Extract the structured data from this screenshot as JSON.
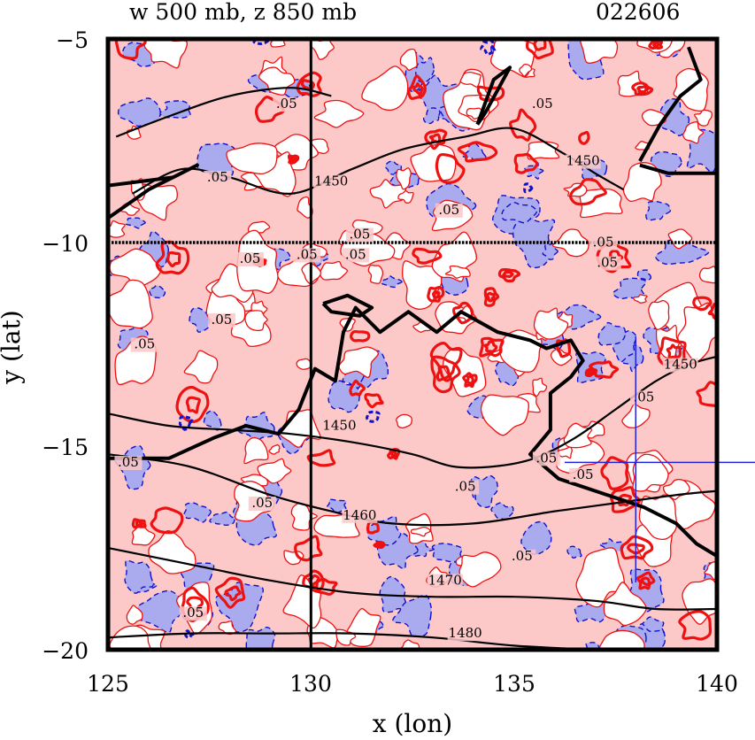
{
  "chart_data": {
    "type": "contour-map",
    "title": "w 500 mb, z 850 mb",
    "date_label": "022606",
    "xlabel": "x (lon)",
    "ylabel": "y (lat)",
    "xlim": [
      125,
      140
    ],
    "ylim": [
      -20,
      -5
    ],
    "x_ticks": [
      125,
      130,
      135,
      140
    ],
    "y_ticks": [
      -5,
      -10,
      -15,
      -20
    ],
    "x_tick_labels": [
      "125",
      "130",
      "135",
      "140"
    ],
    "y_tick_labels": [
      "−5",
      "−10",
      "−15",
      "−20"
    ],
    "reference_lines": {
      "vertical_lon": 130,
      "horizontal_lat": -10
    },
    "colors": {
      "positive_fill": "#fcc8c8",
      "negative_fill": "#aaaaee",
      "positive_line": "#ee1111",
      "negative_line": "#1111cc",
      "height_line": "#000000",
      "marker": "#2222dd"
    },
    "marker": {
      "lon": 138,
      "lat": -15.4
    },
    "height_contours": [
      {
        "label": "1450",
        "points": [
          [
            125,
            -14.2
          ],
          [
            126.5,
            -14.5
          ],
          [
            128,
            -14.6
          ],
          [
            129.5,
            -14.7
          ],
          [
            131,
            -14.9
          ],
          [
            132.5,
            -15.2
          ],
          [
            133.5,
            -15.5
          ],
          [
            134.5,
            -15.5
          ],
          [
            135.5,
            -15.3
          ],
          [
            136.5,
            -14.8
          ],
          [
            137.5,
            -14.1
          ],
          [
            138.5,
            -13.4
          ],
          [
            139.3,
            -13
          ],
          [
            140,
            -12.8
          ]
        ]
      },
      {
        "label": "1460",
        "points": [
          [
            125,
            -15.2
          ],
          [
            127,
            -15.5
          ],
          [
            129,
            -16.2
          ],
          [
            130.5,
            -16.6
          ],
          [
            132,
            -16.9
          ],
          [
            134,
            -16.9
          ],
          [
            136,
            -16.6
          ],
          [
            137.5,
            -16.4
          ],
          [
            139,
            -16.2
          ],
          [
            140,
            -16.1
          ]
        ]
      },
      {
        "label": "1470",
        "points": [
          [
            125,
            -17.5
          ],
          [
            127,
            -17.9
          ],
          [
            129,
            -18.3
          ],
          [
            131,
            -18.6
          ],
          [
            133,
            -18.7
          ],
          [
            135,
            -18.7
          ],
          [
            137,
            -18.8
          ],
          [
            138.5,
            -19
          ],
          [
            140,
            -19
          ]
        ]
      },
      {
        "label": "1480",
        "points": [
          [
            125,
            -19.7
          ],
          [
            127,
            -19.6
          ],
          [
            129,
            -19.6
          ],
          [
            131,
            -19.6
          ],
          [
            133,
            -19.7
          ],
          [
            135,
            -19.9
          ],
          [
            137,
            -20
          ]
        ]
      },
      {
        "label": "1450",
        "points": [
          [
            125.6,
            -8.8
          ],
          [
            126.8,
            -8.2
          ],
          [
            128,
            -8.4
          ],
          [
            129.5,
            -8.8
          ],
          [
            131,
            -8.2
          ],
          [
            132.3,
            -7.7
          ],
          [
            133.8,
            -7.4
          ],
          [
            135,
            -7.2
          ],
          [
            136.2,
            -7.8
          ],
          [
            137,
            -8.3
          ],
          [
            137.7,
            -8.7
          ]
        ]
      },
      {
        "label": "",
        "points": [
          [
            125.2,
            -7.4
          ],
          [
            126.5,
            -6.9
          ],
          [
            128,
            -6.4
          ],
          [
            129.5,
            -6.2
          ],
          [
            130.5,
            -6.4
          ]
        ]
      }
    ],
    "coastlines": [
      [
        [
          125,
          -15.3
        ],
        [
          125.6,
          -15.3
        ],
        [
          126.5,
          -15.3
        ],
        [
          127.6,
          -14.8
        ],
        [
          128.4,
          -14.5
        ],
        [
          129.2,
          -14.7
        ],
        [
          129.7,
          -14.1
        ],
        [
          130.1,
          -13.1
        ],
        [
          130.6,
          -13.4
        ],
        [
          130.8,
          -12.2
        ],
        [
          131.1,
          -11.6
        ],
        [
          131.7,
          -12.2
        ],
        [
          132.4,
          -11.7
        ],
        [
          133.1,
          -12.2
        ],
        [
          133.7,
          -11.7
        ],
        [
          134.6,
          -12.2
        ],
        [
          135.4,
          -12.4
        ],
        [
          135.8,
          -12.6
        ],
        [
          136.4,
          -12.4
        ],
        [
          136.7,
          -12.9
        ],
        [
          136.4,
          -13.3
        ],
        [
          135.9,
          -13.7
        ],
        [
          135.9,
          -14.6
        ],
        [
          135.4,
          -15.2
        ],
        [
          136.1,
          -15.8
        ],
        [
          137.0,
          -16.1
        ],
        [
          138.2,
          -16.5
        ],
        [
          139.0,
          -16.9
        ],
        [
          139.5,
          -17.4
        ],
        [
          140,
          -17.7
        ]
      ],
      [
        [
          130.3,
          -11.5
        ],
        [
          130.9,
          -11.3
        ],
        [
          131.5,
          -11.6
        ],
        [
          131.2,
          -11.8
        ],
        [
          130.5,
          -11.7
        ],
        [
          130.3,
          -11.5
        ]
      ],
      [
        [
          134.1,
          -7.1
        ],
        [
          134.5,
          -6
        ],
        [
          134.9,
          -5.7
        ],
        [
          134.3,
          -6.8
        ],
        [
          134.1,
          -7.1
        ]
      ],
      [
        [
          125,
          -8.6
        ],
        [
          126.6,
          -8.4
        ],
        [
          127.2,
          -8.1
        ],
        [
          126,
          -8.7
        ],
        [
          125,
          -9.4
        ]
      ],
      [
        [
          138.1,
          -8
        ],
        [
          138.6,
          -7.1
        ],
        [
          139.1,
          -6.4
        ],
        [
          139.6,
          -6.0
        ],
        [
          139.3,
          -5.2
        ]
      ],
      [
        [
          138.1,
          -8.1
        ],
        [
          138.8,
          -8.3
        ],
        [
          139.5,
          -8.3
        ],
        [
          140,
          -8.3
        ]
      ]
    ],
    "value_labels": [
      {
        "text": ".05",
        "lon": 127.7,
        "lat": -8.5
      },
      {
        "text": "1450",
        "lon": 130.5,
        "lat": -8.6
      },
      {
        "text": ".05",
        "lon": 129.4,
        "lat": -6.7
      },
      {
        "text": ".05",
        "lon": 135.7,
        "lat": -6.7
      },
      {
        "text": "1450",
        "lon": 136.7,
        "lat": -8.1
      },
      {
        "text": ".05",
        "lon": 133.4,
        "lat": -9.3
      },
      {
        "text": ".05",
        "lon": 131.2,
        "lat": -9.9
      },
      {
        "text": ".05",
        "lon": 129.9,
        "lat": -10.4
      },
      {
        "text": ".05",
        "lon": 131.1,
        "lat": -10.4
      },
      {
        "text": ".05",
        "lon": 128.5,
        "lat": -10.5
      },
      {
        "text": ".05",
        "lon": 127.8,
        "lat": -12
      },
      {
        "text": ".05",
        "lon": 125.9,
        "lat": -12.6
      },
      {
        "text": ".05",
        "lon": 125.5,
        "lat": -15.5
      },
      {
        "text": "1450",
        "lon": 130.7,
        "lat": -14.6
      },
      {
        "text": ".05",
        "lon": 128.8,
        "lat": -16.5
      },
      {
        "text": "1460",
        "lon": 131.2,
        "lat": -16.8
      },
      {
        "text": ".05",
        "lon": 133.8,
        "lat": -16.1
      },
      {
        "text": "1470",
        "lon": 133.3,
        "lat": -18.4
      },
      {
        "text": ".05",
        "lon": 127.1,
        "lat": -19.2
      },
      {
        "text": "1480",
        "lon": 133.8,
        "lat": -19.7
      },
      {
        "text": ".05",
        "lon": 135.2,
        "lat": -17.8
      },
      {
        "text": ".05",
        "lon": 137.2,
        "lat": -10.1
      },
      {
        "text": ".05",
        "lon": 137.3,
        "lat": -10.6
      },
      {
        "text": ".05",
        "lon": 138.2,
        "lat": -13.9
      },
      {
        "text": "1450",
        "lon": 139.1,
        "lat": -13.1
      },
      {
        "text": ".05",
        "lon": 135.8,
        "lat": -15.4
      },
      {
        "text": ".05",
        "lon": 136.7,
        "lat": -15.8
      }
    ],
    "fields": [
      {
        "description": "positive w region (light red)",
        "sign": "pos",
        "n": 140,
        "seed": 11,
        "rmin": 0.15,
        "rmax": 0.65
      },
      {
        "description": "negative w region (light blue)",
        "sign": "neg",
        "n": 95,
        "seed": 23,
        "rmin": 0.18,
        "rmax": 0.6
      },
      {
        "description": "strong positive w (bold red contours)",
        "sign": "strong",
        "n": 55,
        "seed": 37,
        "rmin": 0.12,
        "rmax": 0.45
      },
      {
        "description": "strong negative w (bold blue contours)",
        "sign": "strongneg",
        "n": 6,
        "seed": 41,
        "rmin": 0.08,
        "rmax": 0.18
      }
    ]
  }
}
